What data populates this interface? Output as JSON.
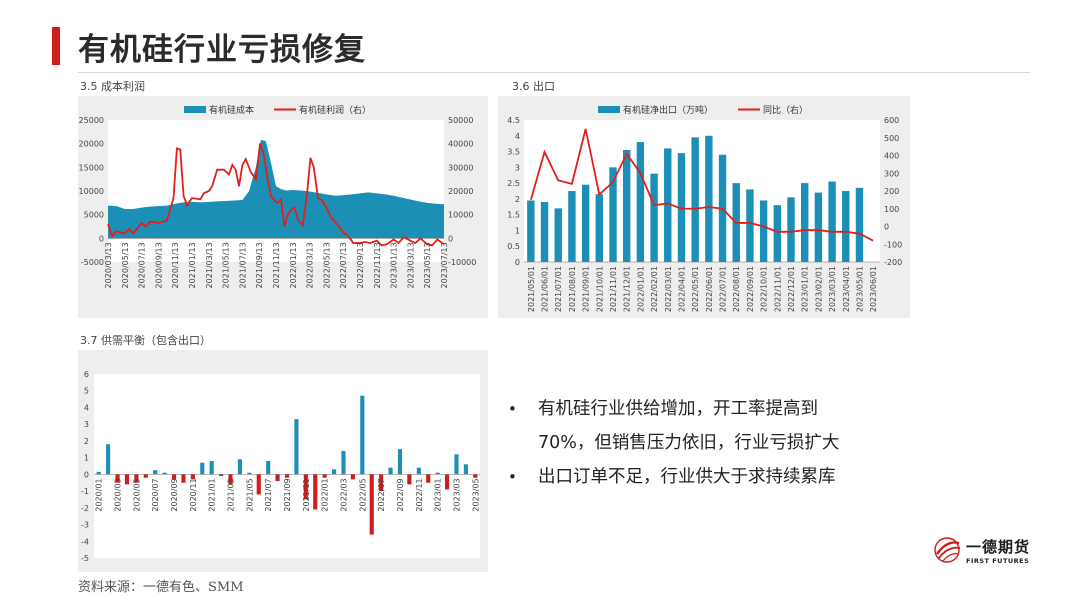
{
  "page": {
    "title": "有机硅行业亏损修复",
    "source": "资料来源：一德有色、SMM",
    "colors": {
      "accent": "#d11c1c",
      "bar": "#1b8fb5",
      "line": "#e0201c",
      "neg_bar": "#d11c1c"
    }
  },
  "bullets": [
    {
      "text": "有机硅行业供给增加，开工率提高到"
    },
    {
      "text": "70%，但销售压力依旧，行业亏损扩大",
      "continuation": true
    },
    {
      "text": "出口订单不足，行业供大于求持续累库"
    }
  ],
  "logo": {
    "name": "一德期货",
    "en": "FIRST FUTURES",
    "icon": "globe-swoosh-icon"
  },
  "chart_data": [
    {
      "label": "3.5 成本利润",
      "type": "area",
      "legend": {
        "placement": "top",
        "entries": [
          "有机硅成本",
          "有机硅利润（右）"
        ]
      },
      "x_ticks": [
        "2020/03/13",
        "2020/05/13",
        "2020/07/13",
        "2020/09/13",
        "2020/11/13",
        "2021/01/13",
        "2021/03/13",
        "2021/05/13",
        "2021/07/13",
        "2021/09/13",
        "2021/11/13",
        "2022/01/13",
        "2022/03/13",
        "2022/05/13",
        "2022/07/13",
        "2022/09/13",
        "2022/11/13",
        "2023/01/13",
        "2023/03/13",
        "2023/05/13",
        "2023/07/13"
      ],
      "y_left": {
        "min": -5000,
        "max": 25000,
        "ticks": [
          "-5000",
          "0",
          "5000",
          "10000",
          "15000",
          "20000",
          "25000"
        ]
      },
      "y_right": {
        "min": -10000,
        "max": 50000,
        "ticks": [
          "-10000",
          "0",
          "10000",
          "20000",
          "30000",
          "40000",
          "50000"
        ]
      },
      "series": [
        {
          "name": "有机硅成本",
          "type": "area",
          "axis": "left",
          "points": [
            [
              0,
              6900
            ],
            [
              0.5,
              6800
            ],
            [
              1,
              6200
            ],
            [
              1.5,
              6200
            ],
            [
              2,
              6500
            ],
            [
              2.5,
              6700
            ],
            [
              3,
              6800
            ],
            [
              3.5,
              6900
            ],
            [
              4,
              7300
            ],
            [
              4.5,
              7600
            ],
            [
              5,
              7700
            ],
            [
              5.5,
              7600
            ],
            [
              6,
              7700
            ],
            [
              6.5,
              7800
            ],
            [
              7,
              7900
            ],
            [
              7.5,
              8000
            ],
            [
              8,
              8100
            ],
            [
              8.4,
              10000
            ],
            [
              8.8,
              15000
            ],
            [
              9.1,
              20800
            ],
            [
              9.4,
              20500
            ],
            [
              9.7,
              16000
            ],
            [
              10,
              11000
            ],
            [
              10.3,
              10400
            ],
            [
              10.6,
              10100
            ],
            [
              11,
              10200
            ],
            [
              11.5,
              10100
            ],
            [
              12,
              9900
            ],
            [
              12.5,
              9600
            ],
            [
              13,
              9300
            ],
            [
              13.5,
              9000
            ],
            [
              14,
              9100
            ],
            [
              14.5,
              9300
            ],
            [
              15,
              9500
            ],
            [
              15.5,
              9700
            ],
            [
              16,
              9500
            ],
            [
              16.5,
              9300
            ],
            [
              17,
              9000
            ],
            [
              17.5,
              8600
            ],
            [
              18,
              8200
            ],
            [
              18.5,
              7800
            ],
            [
              19,
              7500
            ],
            [
              19.5,
              7300
            ],
            [
              20,
              7200
            ]
          ]
        },
        {
          "name": "有机硅利润（右）",
          "type": "line",
          "axis": "right",
          "points": [
            [
              0,
              6000
            ],
            [
              0.25,
              1000
            ],
            [
              0.5,
              3000
            ],
            [
              1,
              2000
            ],
            [
              1.25,
              4000
            ],
            [
              1.5,
              2000
            ],
            [
              2,
              6500
            ],
            [
              2.25,
              5000
            ],
            [
              2.5,
              7000
            ],
            [
              3,
              6500
            ],
            [
              3.5,
              7500
            ],
            [
              3.9,
              17000
            ],
            [
              4.1,
              38000
            ],
            [
              4.3,
              37500
            ],
            [
              4.5,
              18000
            ],
            [
              4.7,
              14000
            ],
            [
              5,
              17000
            ],
            [
              5.5,
              16500
            ],
            [
              5.7,
              19000
            ],
            [
              6,
              20000
            ],
            [
              6.2,
              22000
            ],
            [
              6.5,
              29000
            ],
            [
              6.9,
              29000
            ],
            [
              7.2,
              27000
            ],
            [
              7.4,
              31000
            ],
            [
              7.6,
              29000
            ],
            [
              7.8,
              22000
            ],
            [
              8,
              31000
            ],
            [
              8.2,
              33500
            ],
            [
              8.5,
              28000
            ],
            [
              8.8,
              25000
            ],
            [
              9.05,
              40000
            ],
            [
              9.25,
              36000
            ],
            [
              9.5,
              25000
            ],
            [
              9.7,
              18000
            ],
            [
              9.9,
              16000
            ],
            [
              10.1,
              15000
            ],
            [
              10.3,
              16500
            ],
            [
              10.5,
              5000
            ],
            [
              10.7,
              10000
            ],
            [
              10.9,
              12000
            ],
            [
              11.1,
              13000
            ],
            [
              11.3,
              8000
            ],
            [
              11.6,
              5500
            ],
            [
              11.85,
              19000
            ],
            [
              12.05,
              34000
            ],
            [
              12.25,
              30000
            ],
            [
              12.5,
              17000
            ],
            [
              12.75,
              16000
            ],
            [
              13,
              13000
            ],
            [
              13.25,
              9000
            ],
            [
              13.5,
              7000
            ],
            [
              13.75,
              5000
            ],
            [
              14,
              2500
            ],
            [
              14.3,
              1000
            ],
            [
              14.6,
              -2000
            ],
            [
              15,
              -2000
            ],
            [
              15.3,
              -1500
            ],
            [
              15.6,
              -2000
            ],
            [
              16,
              -1000
            ],
            [
              16.3,
              -3000
            ],
            [
              16.6,
              -2500
            ],
            [
              17,
              -500
            ],
            [
              17.3,
              -2000
            ],
            [
              17.6,
              500
            ],
            [
              18,
              -1000
            ],
            [
              18.3,
              -2000
            ],
            [
              18.6,
              0
            ],
            [
              19,
              -2500
            ],
            [
              19.3,
              -3000
            ],
            [
              19.6,
              -500
            ],
            [
              20,
              -2500
            ]
          ]
        }
      ]
    },
    {
      "label": "3.6 出口",
      "type": "bar",
      "legend": {
        "placement": "top",
        "entries": [
          "有机硅净出口（万吨）",
          "同比（右）"
        ]
      },
      "categories": [
        "2021/05/01",
        "2021/06/01",
        "2021/07/01",
        "2021/08/01",
        "2021/09/01",
        "2021/10/01",
        "2021/11/01",
        "2021/12/01",
        "2022/01/01",
        "2022/02/01",
        "2022/03/01",
        "2022/04/01",
        "2022/05/01",
        "2022/06/01",
        "2022/07/01",
        "2022/08/01",
        "2022/09/01",
        "2022/10/01",
        "2022/11/01",
        "2022/12/01",
        "2023/01/01",
        "2023/02/01",
        "2023/03/01",
        "2023/04/01",
        "2023/05/01",
        "2023/06/01"
      ],
      "y_left": {
        "min": 0,
        "max": 4.5,
        "ticks": [
          "0",
          "0.5",
          "1",
          "1.5",
          "2",
          "2.5",
          "3",
          "3.5",
          "4",
          "4.5"
        ]
      },
      "y_right": {
        "min": -200,
        "max": 600,
        "ticks": [
          "-200",
          "-100",
          "0",
          "100",
          "200",
          "300",
          "400",
          "500",
          "600"
        ]
      },
      "series": [
        {
          "name": "有机硅净出口（万吨）",
          "type": "bar",
          "axis": "left",
          "values": [
            1.95,
            1.9,
            1.7,
            2.25,
            2.45,
            2.15,
            3.0,
            3.55,
            3.8,
            2.8,
            3.6,
            3.45,
            3.95,
            4.0,
            3.4,
            2.5,
            2.3,
            1.95,
            1.8,
            2.05,
            2.5,
            2.2,
            2.55,
            2.25,
            2.35,
            0
          ]
        },
        {
          "name": "同比（右）",
          "type": "line",
          "axis": "right",
          "values": [
            150,
            420,
            260,
            240,
            550,
            180,
            250,
            410,
            300,
            120,
            130,
            100,
            100,
            110,
            100,
            20,
            20,
            0,
            -30,
            -30,
            -20,
            -20,
            -30,
            -30,
            -40,
            -80
          ]
        }
      ]
    },
    {
      "label": "3.7 供需平衡（包含出口）",
      "type": "bar",
      "categories": [
        "2020/01",
        "2020/02",
        "2020/03",
        "2020/04",
        "2020/05",
        "2020/06",
        "2020/07",
        "2020/08",
        "2020/09",
        "2020/10",
        "2020/11",
        "2020/12",
        "2021/01",
        "2021/02",
        "2021/03",
        "2021/04",
        "2021/05",
        "2021/06",
        "2021/07",
        "2021/08",
        "2021/09",
        "2021/10",
        "2021/11",
        "2021/12",
        "2022/01",
        "2022/02",
        "2022/03",
        "2022/04",
        "2022/05",
        "2022/06",
        "2022/07",
        "2022/08",
        "2022/09",
        "2022/10",
        "2022/11",
        "2022/12",
        "2023/01",
        "2023/02",
        "2023/03",
        "2023/04",
        "2023/05"
      ],
      "x_ticks": [
        "2020/01",
        "2020/03",
        "2020/05",
        "2020/07",
        "2020/09",
        "2020/11",
        "2021/01",
        "2021/03",
        "2021/05",
        "2021/07",
        "2021/09",
        "2021/11",
        "2022/01",
        "2022/03",
        "2022/05",
        "2022/07",
        "2022/09",
        "2022/11",
        "2023/01",
        "2023/03",
        "2023/05"
      ],
      "y": {
        "min": -5,
        "max": 6,
        "ticks": [
          "-5",
          "-4",
          "-3",
          "-2",
          "-1",
          "0",
          "1",
          "2",
          "3",
          "4",
          "5",
          "6"
        ]
      },
      "series": [
        {
          "name": "",
          "type": "bar",
          "values": [
            0.15,
            1.8,
            -0.5,
            -0.6,
            -0.5,
            -0.2,
            0.25,
            0.1,
            -0.3,
            -0.5,
            -0.3,
            0.7,
            0.8,
            -0.1,
            -0.6,
            0.9,
            0.1,
            -1.2,
            0.8,
            -0.4,
            -0.2,
            3.3,
            -1.5,
            -2.1,
            -0.2,
            0.3,
            1.4,
            -0.3,
            4.7,
            -3.6,
            -1.0,
            0.4,
            1.5,
            -0.6,
            0.4,
            -0.5,
            0.1,
            -0.9,
            1.2,
            0.6,
            -0.2
          ]
        }
      ]
    }
  ]
}
